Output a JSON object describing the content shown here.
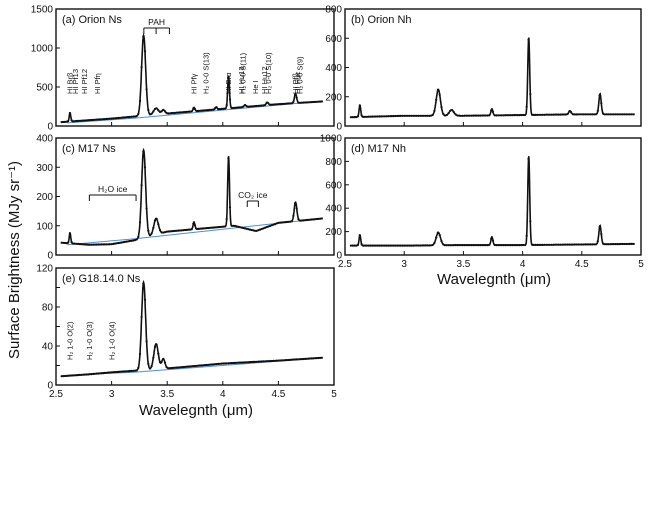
{
  "figure": {
    "ylabel": "Surface Brightness (MJy sr⁻¹)",
    "xlabel_left": "Wavelegnth (μm)",
    "xlabel_right": "Wavelegnth (μm)"
  },
  "colors": {
    "data": "#111111",
    "fit": "#d23a3a",
    "baseline": "#4d8fd6"
  },
  "chart_data": [
    {
      "id": "orion_ns",
      "type": "line",
      "title": "(a) Orion Ns",
      "xlim": [
        2.5,
        5.0
      ],
      "ylim": [
        0,
        1500
      ],
      "yticks": [
        0,
        500,
        1000,
        1500
      ],
      "xticks": [],
      "baseline": [
        [
          2.6,
          40
        ],
        [
          3.2,
          100
        ],
        [
          4.9,
          320
        ]
      ],
      "continuum": [
        [
          2.55,
          50
        ],
        [
          3.0,
          95
        ],
        [
          3.5,
          160
        ],
        [
          4.0,
          220
        ],
        [
          4.5,
          280
        ],
        [
          4.9,
          315
        ]
      ],
      "peaks": [
        [
          2.626,
          110,
          0.007
        ],
        [
          3.288,
          1030,
          0.018
        ],
        [
          3.4,
          80,
          0.022
        ],
        [
          3.465,
          50,
          0.015
        ],
        [
          3.741,
          50,
          0.008
        ],
        [
          3.94,
          30,
          0.008
        ],
        [
          4.052,
          420,
          0.008
        ],
        [
          4.2,
          25,
          0.01
        ],
        [
          4.4,
          35,
          0.01
        ],
        [
          4.654,
          120,
          0.01
        ]
      ],
      "line_labels": [
        {
          "text": "HI Brβ",
          "x": 2.626
        },
        {
          "text": "HI Pf13",
          "x": 2.675
        },
        {
          "text": "HI Pf12",
          "x": 2.758
        },
        {
          "text": "HI Pfη",
          "x": 2.873
        },
        {
          "text": "HI Pfγ",
          "x": 3.741
        },
        {
          "text": "H₂ 0-0 S(13)",
          "x": 3.85
        },
        {
          "text": "HI Brα",
          "x": 4.052
        },
        {
          "text": "HI Hu13",
          "x": 4.17
        },
        {
          "text": "H₂ 0-0 S(11)",
          "x": 4.18
        },
        {
          "text": "He I",
          "x": 4.296
        },
        {
          "text": "HI Hu12",
          "x": 4.376
        },
        {
          "text": "H₂ 0-0 S(10)",
          "x": 4.41
        },
        {
          "text": "HI Pfβ",
          "x": 4.654
        },
        {
          "text": "HI Huε",
          "x": 4.673
        },
        {
          "text": "H₂ 0-0 S(9)",
          "x": 4.695
        }
      ],
      "feature_brackets": [
        {
          "text": "PAH",
          "x1": 3.29,
          "x2": 3.52,
          "ticks": [
            3.29,
            3.4,
            3.52
          ]
        }
      ]
    },
    {
      "id": "orion_nh",
      "type": "line",
      "title": "(b) Orion Nh",
      "xlim": [
        2.5,
        5.0
      ],
      "ylim": [
        0,
        800
      ],
      "yticks": [
        0,
        200,
        400,
        600,
        800
      ],
      "xticks": [],
      "continuum": [
        [
          2.55,
          60
        ],
        [
          3.0,
          70
        ],
        [
          3.5,
          70
        ],
        [
          4.0,
          75
        ],
        [
          4.5,
          80
        ],
        [
          4.95,
          80
        ]
      ],
      "peaks": [
        [
          2.626,
          80,
          0.007
        ],
        [
          3.288,
          180,
          0.018
        ],
        [
          3.4,
          40,
          0.02
        ],
        [
          3.741,
          45,
          0.008
        ],
        [
          4.052,
          530,
          0.008
        ],
        [
          4.4,
          25,
          0.01
        ],
        [
          4.654,
          140,
          0.01
        ]
      ],
      "line_labels": [],
      "feature_brackets": []
    },
    {
      "id": "m17_ns",
      "type": "line",
      "title": "(c) M17 Ns",
      "xlim": [
        2.5,
        5.0
      ],
      "ylim": [
        0,
        400
      ],
      "yticks": [
        0,
        100,
        200,
        300,
        400
      ],
      "xticks": [],
      "baseline": [
        [
          2.6,
          35
        ],
        [
          3.2,
          55
        ],
        [
          4.9,
          125
        ]
      ],
      "continuum": [
        [
          2.55,
          42
        ],
        [
          2.8,
          35
        ],
        [
          3.0,
          37
        ],
        [
          3.2,
          50
        ],
        [
          3.5,
          80
        ],
        [
          3.8,
          90
        ],
        [
          4.1,
          100
        ],
        [
          4.3,
          82
        ],
        [
          4.5,
          110
        ],
        [
          4.9,
          125
        ]
      ],
      "peaks": [
        [
          2.626,
          35,
          0.007
        ],
        [
          3.288,
          300,
          0.018
        ],
        [
          3.4,
          55,
          0.02
        ],
        [
          3.741,
          25,
          0.008
        ],
        [
          4.052,
          240,
          0.008
        ],
        [
          4.654,
          65,
          0.012
        ]
      ],
      "line_labels": [],
      "feature_brackets": [
        {
          "text": "H₂O ice",
          "x1": 2.8,
          "x2": 3.22,
          "ticks": [
            2.8,
            3.22
          ]
        },
        {
          "text": "CO₂ ice",
          "x1": 4.22,
          "x2": 4.32,
          "ticks": [
            4.22,
            4.32
          ]
        }
      ]
    },
    {
      "id": "m17_nh",
      "type": "line",
      "title": "(d) M17 Nh",
      "xlim": [
        2.5,
        5.0
      ],
      "ylim": [
        0,
        1000
      ],
      "yticks": [
        0,
        200,
        400,
        600,
        800,
        1000
      ],
      "xticks": [
        2.5,
        3,
        3.5,
        4,
        4.5,
        5
      ],
      "xtick_labels": [
        "2.5",
        "3",
        "3.5",
        "4",
        "4.5",
        "5"
      ],
      "continuum": [
        [
          2.55,
          80
        ],
        [
          3.0,
          80
        ],
        [
          3.5,
          85
        ],
        [
          4.0,
          85
        ],
        [
          4.5,
          90
        ],
        [
          4.95,
          95
        ]
      ],
      "peaks": [
        [
          2.626,
          90,
          0.007
        ],
        [
          3.288,
          110,
          0.018
        ],
        [
          3.741,
          70,
          0.008
        ],
        [
          4.052,
          760,
          0.008
        ],
        [
          4.654,
          160,
          0.01
        ]
      ],
      "line_labels": [],
      "feature_brackets": []
    },
    {
      "id": "g18_ns",
      "type": "line",
      "title": "(e) G18.14.0 Ns",
      "xlim": [
        2.5,
        5.0
      ],
      "ylim": [
        0,
        120
      ],
      "yticks": [
        0,
        20,
        40,
        60,
        80,
        100,
        120
      ],
      "ytick_labels": [
        "0",
        "",
        "40",
        "",
        "80",
        "",
        "120"
      ],
      "xticks": [
        2.5,
        3,
        3.5,
        4,
        4.5,
        5
      ],
      "xtick_labels": [
        "2.5",
        "3",
        "3.5",
        "4",
        "4.5",
        "5"
      ],
      "baseline": [
        [
          2.6,
          10
        ],
        [
          3.2,
          13
        ],
        [
          4.9,
          28
        ]
      ],
      "continuum": [
        [
          2.55,
          9
        ],
        [
          2.8,
          11
        ],
        [
          3.0,
          13
        ],
        [
          3.5,
          17
        ],
        [
          4.0,
          22
        ],
        [
          4.5,
          25
        ],
        [
          4.9,
          28
        ]
      ],
      "peaks": [
        [
          3.288,
          90,
          0.018
        ],
        [
          3.4,
          26,
          0.02
        ],
        [
          3.465,
          10,
          0.015
        ]
      ],
      "line_labels": [
        {
          "text": "H₂ 1-0 O(2)",
          "x": 2.627
        },
        {
          "text": "H₂ 1-0 O(3)",
          "x": 2.803
        },
        {
          "text": "H₂ 1-0 O(4)",
          "x": 3.004
        }
      ],
      "feature_brackets": []
    }
  ]
}
